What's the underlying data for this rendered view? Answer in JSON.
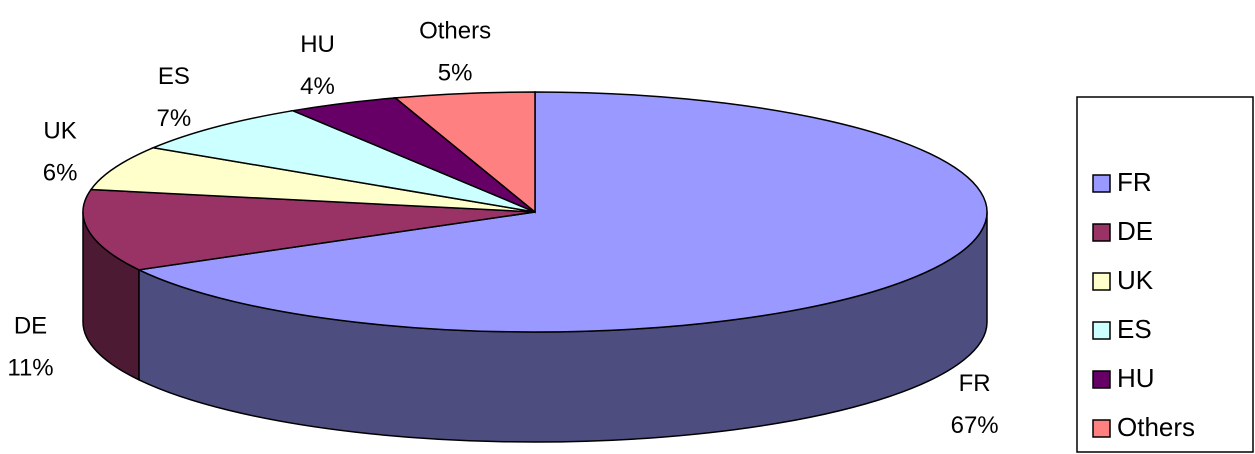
{
  "chart_data": {
    "type": "pie3d",
    "categories": [
      "FR",
      "DE",
      "UK",
      "ES",
      "HU",
      "Others"
    ],
    "values": [
      67,
      11,
      6,
      7,
      4,
      5
    ],
    "value_labels": [
      "67%",
      "11%",
      "6%",
      "7%",
      "4%",
      "5%"
    ],
    "colors": [
      "#9999ff",
      "#993366",
      "#ffffcc",
      "#ccffff",
      "#660066",
      "#ff8080"
    ],
    "legend": "right"
  }
}
